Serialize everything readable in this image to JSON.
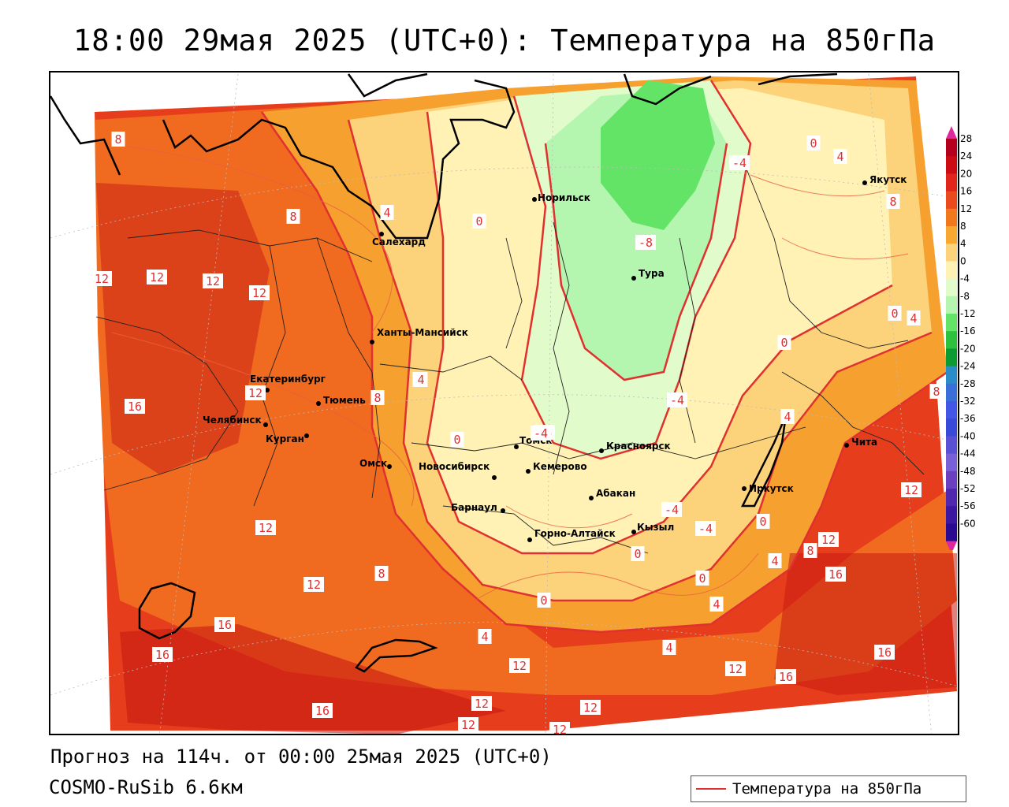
{
  "title": "18:00 29мая 2025 (UTC+0): Температура на 850гПа",
  "forecast_info": "Прогноз на 114ч. от 00:00 25мая 2025 (UTC+0)",
  "model_name": "COSMO-RuSib 6.6км",
  "legend_series": "Температура на 850гПа",
  "colors": {
    "contour_line": "#e03030",
    "coastline": "#000000",
    "outside_domain": "#ffffff"
  },
  "cities": [
    {
      "name": "Салехард"
    },
    {
      "name": "Норильск"
    },
    {
      "name": "Якутск"
    },
    {
      "name": "Тура"
    },
    {
      "name": "Ханты-Мансийск"
    },
    {
      "name": "Екатеринбург"
    },
    {
      "name": "Тюмень"
    },
    {
      "name": "Челябинск"
    },
    {
      "name": "Курган"
    },
    {
      "name": "Омск"
    },
    {
      "name": "Томск"
    },
    {
      "name": "Новосибирск"
    },
    {
      "name": "Кемерово"
    },
    {
      "name": "Красноярск"
    },
    {
      "name": "Абакан"
    },
    {
      "name": "Барнаул"
    },
    {
      "name": "Горно-Алтайск"
    },
    {
      "name": "Кызыл"
    },
    {
      "name": "Иркутск"
    },
    {
      "name": "Чита"
    }
  ],
  "contour_labels": [
    "8",
    "8",
    "4",
    "0",
    "-4",
    "0",
    "4",
    "8",
    "12",
    "12",
    "12",
    "12",
    "-8",
    "0",
    "4",
    "-4",
    "0",
    "4",
    "12",
    "16",
    "8",
    "4",
    "-4",
    "0",
    "-4",
    "0",
    "4",
    "8",
    "12",
    "16",
    "12",
    "16",
    "16",
    "12",
    "12",
    "12",
    "12",
    "12",
    "12",
    "16",
    "16",
    "8",
    "4",
    "0",
    "4",
    "4",
    "0",
    "-4",
    "-4",
    "0",
    "8",
    "4",
    "12",
    "12",
    "16"
  ],
  "colorbar": {
    "ticks": [
      "28",
      "24",
      "20",
      "16",
      "12",
      "8",
      "4",
      "0",
      "-4",
      "-8",
      "-12",
      "-16",
      "-20",
      "-24",
      "-28",
      "-32",
      "-36",
      "-40",
      "-44",
      "-48",
      "-52",
      "-56",
      "-60"
    ],
    "colors": [
      "#b4001e",
      "#cc0c14",
      "#e0261a",
      "#ea4a1c",
      "#f2781e",
      "#f8a830",
      "#fcd27a",
      "#fff2b4",
      "#e2fbca",
      "#b4f5b0",
      "#64e466",
      "#2cc23e",
      "#0c9a32",
      "#2a8cc8",
      "#3a6ed8",
      "#4456e6",
      "#3a4ad8",
      "#5a50d4",
      "#7860d8",
      "#6a40c0",
      "#5028b0",
      "#3c18a0",
      "#2a0a90"
    ],
    "over_color": "#e0289e",
    "under_color": "#e0289e"
  }
}
